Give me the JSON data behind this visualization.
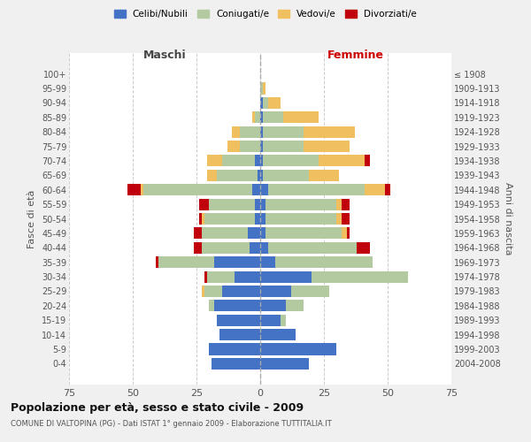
{
  "age_groups": [
    "0-4",
    "5-9",
    "10-14",
    "15-19",
    "20-24",
    "25-29",
    "30-34",
    "35-39",
    "40-44",
    "45-49",
    "50-54",
    "55-59",
    "60-64",
    "65-69",
    "70-74",
    "75-79",
    "80-84",
    "85-89",
    "90-94",
    "95-99",
    "100+"
  ],
  "birth_years": [
    "2004-2008",
    "1999-2003",
    "1994-1998",
    "1989-1993",
    "1984-1988",
    "1979-1983",
    "1974-1978",
    "1969-1973",
    "1964-1968",
    "1959-1963",
    "1954-1958",
    "1949-1953",
    "1944-1948",
    "1939-1943",
    "1934-1938",
    "1929-1933",
    "1924-1928",
    "1919-1923",
    "1914-1918",
    "1909-1913",
    "≤ 1908"
  ],
  "colors": {
    "celibi": "#4472C4",
    "coniugati": "#B3C9A0",
    "vedovi": "#F0C060",
    "divorziati": "#C0000C"
  },
  "maschi": {
    "celibi": [
      19,
      20,
      16,
      17,
      18,
      15,
      10,
      18,
      4,
      5,
      2,
      2,
      3,
      1,
      2,
      0,
      0,
      0,
      0,
      0,
      0
    ],
    "coniugati": [
      0,
      0,
      0,
      0,
      2,
      7,
      11,
      22,
      19,
      18,
      20,
      18,
      43,
      16,
      13,
      8,
      8,
      2,
      0,
      0,
      0
    ],
    "vedovi": [
      0,
      0,
      0,
      0,
      0,
      1,
      0,
      0,
      0,
      0,
      1,
      0,
      1,
      4,
      6,
      5,
      3,
      1,
      0,
      0,
      0
    ],
    "divorziati": [
      0,
      0,
      0,
      0,
      0,
      0,
      1,
      1,
      3,
      3,
      1,
      4,
      5,
      0,
      0,
      0,
      0,
      0,
      0,
      0,
      0
    ]
  },
  "femmine": {
    "celibi": [
      19,
      30,
      14,
      8,
      10,
      12,
      20,
      6,
      3,
      2,
      2,
      2,
      3,
      1,
      1,
      1,
      1,
      1,
      1,
      0,
      0
    ],
    "coniugati": [
      0,
      0,
      0,
      2,
      7,
      15,
      38,
      38,
      35,
      30,
      28,
      28,
      38,
      18,
      22,
      16,
      16,
      8,
      2,
      1,
      0
    ],
    "vedovi": [
      0,
      0,
      0,
      0,
      0,
      0,
      0,
      0,
      0,
      2,
      2,
      2,
      8,
      12,
      18,
      18,
      20,
      14,
      5,
      1,
      0
    ],
    "divorziati": [
      0,
      0,
      0,
      0,
      0,
      0,
      0,
      0,
      5,
      1,
      3,
      3,
      2,
      0,
      2,
      0,
      0,
      0,
      0,
      0,
      0
    ]
  },
  "title": "Popolazione per età, sesso e stato civile - 2009",
  "subtitle": "COMUNE DI VALTOPINA (PG) - Dati ISTAT 1° gennaio 2009 - Elaborazione TUTTITALIA.IT",
  "xlabel_left": "Maschi",
  "xlabel_right": "Femmine",
  "ylabel_left": "Fasce di età",
  "ylabel_right": "Anni di nascita",
  "xlim": 75,
  "legend_labels": [
    "Celibi/Nubili",
    "Coniugati/e",
    "Vedovi/e",
    "Divorziati/e"
  ],
  "bg_color": "#f0f0f0",
  "plot_bg_color": "#ffffff"
}
